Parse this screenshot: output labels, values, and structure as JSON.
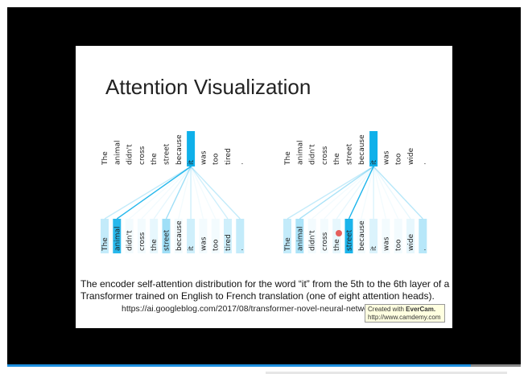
{
  "slide": {
    "title": "Attention Visualization",
    "diagrams": [
      {
        "words": [
          "The",
          "animal",
          "didn't",
          "cross",
          "the",
          "street",
          "because",
          "it",
          "was",
          "too",
          "tired",
          "."
        ],
        "weights": [
          0.25,
          0.9,
          0.05,
          0.05,
          0.1,
          0.4,
          0.05,
          0.2,
          0.05,
          0.05,
          0.2,
          0.25
        ]
      },
      {
        "words": [
          "The",
          "animal",
          "didn't",
          "cross",
          "the",
          "street",
          "because",
          "it",
          "was",
          "too",
          "wide",
          "."
        ],
        "weights": [
          0.25,
          0.35,
          0.05,
          0.05,
          0.1,
          0.95,
          0.05,
          0.15,
          0.05,
          0.05,
          0.1,
          0.3
        ]
      }
    ],
    "caption": [
      "The encoder self-attention distribution for the word “it” from the 5th to the 6th layer of a",
      "Transformer trained on English to French translation (one of eight attention heads)."
    ],
    "source": "https://ai.googleblog.com/2017/08/transformer-novel-neural-network.html"
  },
  "watermark": {
    "prefix": "Created with",
    "brand": "EverCam.",
    "url": "http://www.camdemy.com"
  }
}
